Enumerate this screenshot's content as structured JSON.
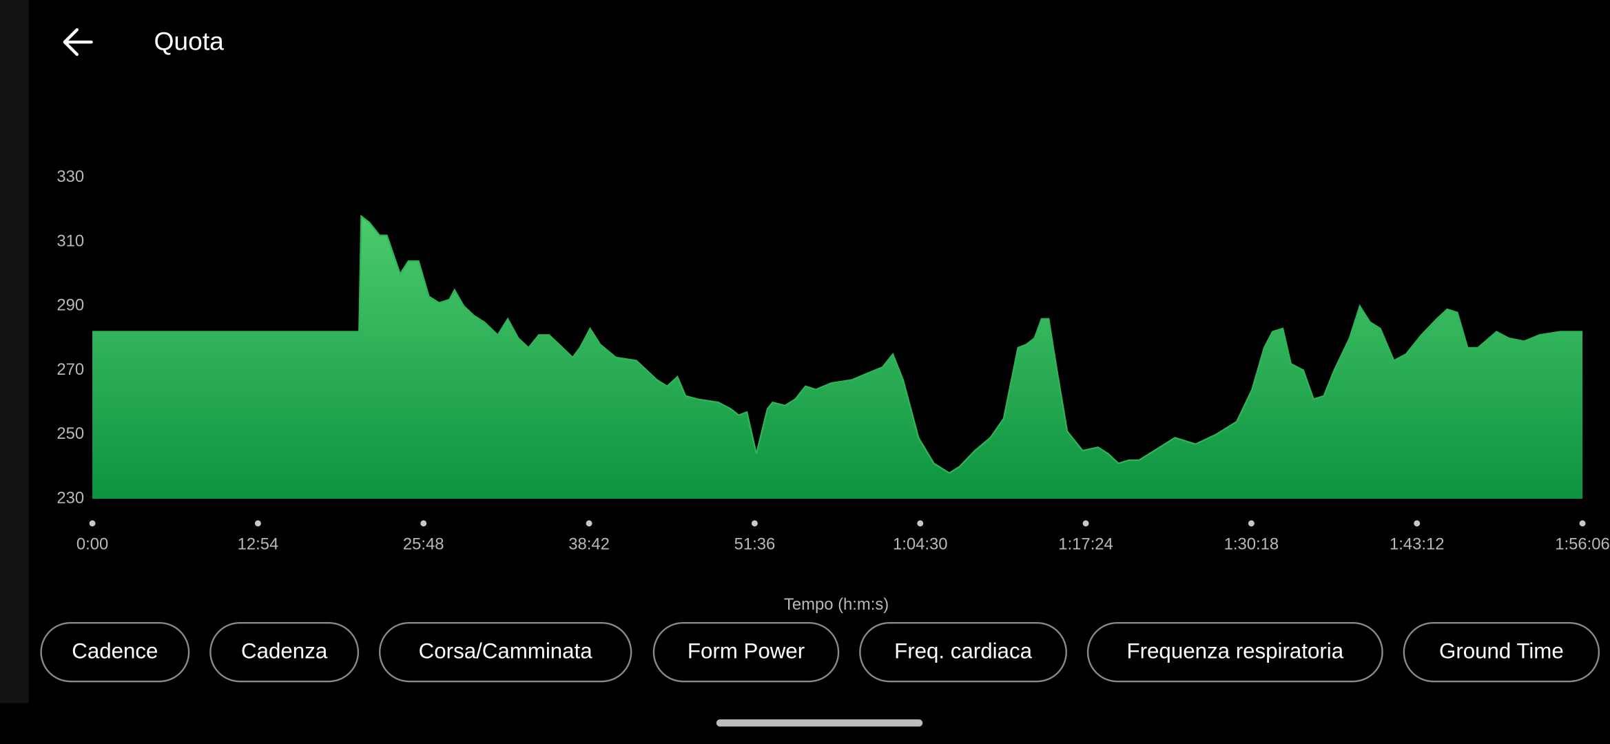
{
  "header": {
    "title": "Quota"
  },
  "chart_data": {
    "type": "area",
    "x_label": "Tempo (h:m:s)",
    "x": [
      0,
      1247,
      1257,
      1295,
      1343,
      1377,
      1439,
      1477,
      1525,
      1573,
      1621,
      1669,
      1693,
      1736,
      1784,
      1832,
      1895,
      1942,
      1991,
      2039,
      2087,
      2135,
      2183,
      2245,
      2279,
      2327,
      2375,
      2447,
      2543,
      2591,
      2639,
      2687,
      2735,
      2773,
      2830,
      2926,
      2984,
      3022,
      3060,
      3104,
      3156,
      3180,
      3238,
      3286,
      3334,
      3382,
      3454,
      3550,
      3622,
      3694,
      3742,
      3790,
      3862,
      3934,
      4006,
      4054,
      4126,
      4198,
      4260,
      4327,
      4365,
      4404,
      4437,
      4471,
      4509,
      4557,
      4629,
      4701,
      4749,
      4797,
      4845,
      4893,
      4965,
      5061,
      5157,
      5253,
      5349,
      5421,
      5478,
      5517,
      5565,
      5603,
      5661,
      5709,
      5757,
      5805,
      5877,
      5925,
      5973,
      6021,
      6084,
      6141,
      6213,
      6285,
      6333,
      6381,
      6429,
      6477,
      6564,
      6621,
      6693,
      6765,
      6861,
      6966
    ],
    "values": [
      282,
      282,
      318,
      316,
      312,
      312,
      300,
      304,
      304,
      293,
      291,
      292,
      295,
      290,
      287,
      285,
      281,
      286,
      280,
      277,
      281,
      281,
      278,
      274,
      277,
      283,
      278,
      274,
      273,
      270,
      267,
      265,
      268,
      262,
      261,
      260,
      258,
      256,
      257,
      244,
      258,
      260,
      259,
      261,
      265,
      264,
      266,
      267,
      269,
      271,
      275,
      267,
      249,
      241,
      238,
      240,
      245,
      249,
      255,
      277,
      278,
      280,
      286,
      286,
      270,
      251,
      245,
      246,
      244,
      241,
      242,
      242,
      245,
      249,
      247,
      250,
      254,
      264,
      277,
      282,
      283,
      272,
      270,
      261,
      262,
      270,
      280,
      290,
      285,
      283,
      273,
      275,
      281,
      286,
      289,
      288,
      277,
      277,
      282,
      280,
      279,
      281,
      282,
      282
    ],
    "color": "#2fb457",
    "xlim": [
      0,
      6966
    ],
    "ylim": [
      230,
      330
    ],
    "xticks": [
      {
        "value": 0,
        "label": "0:00"
      },
      {
        "value": 774,
        "label": "12:54"
      },
      {
        "value": 1548,
        "label": "25:48"
      },
      {
        "value": 2322,
        "label": "38:42"
      },
      {
        "value": 3096,
        "label": "51:36"
      },
      {
        "value": 3870,
        "label": "1:04:30"
      },
      {
        "value": 4644,
        "label": "1:17:24"
      },
      {
        "value": 5418,
        "label": "1:30:18"
      },
      {
        "value": 6192,
        "label": "1:43:12"
      },
      {
        "value": 6966,
        "label": "1:56:06"
      }
    ],
    "yticks": [
      230,
      250,
      270,
      290,
      310,
      330
    ]
  },
  "buttons": [
    "Cadence",
    "Cadenza",
    "Corsa/Camminata",
    "Form Power",
    "Freq. cardiaca",
    "Frequenza respiratoria",
    "Ground Time"
  ]
}
